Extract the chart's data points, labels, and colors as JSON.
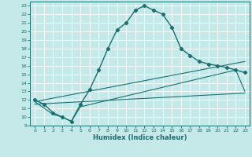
{
  "xlabel": "Humidex (Indice chaleur)",
  "xlim": [
    -0.5,
    23.5
  ],
  "ylim": [
    9,
    23.5
  ],
  "yticks": [
    9,
    10,
    11,
    12,
    13,
    14,
    15,
    16,
    17,
    18,
    19,
    20,
    21,
    22,
    23
  ],
  "xticks": [
    0,
    1,
    2,
    3,
    4,
    5,
    6,
    7,
    8,
    9,
    10,
    11,
    12,
    13,
    14,
    15,
    16,
    17,
    18,
    19,
    20,
    21,
    22,
    23
  ],
  "bg_color": "#c5e8e8",
  "line_color": "#1a7070",
  "grid_color": "#ffffff",
  "curve1_x": [
    0,
    1,
    2,
    3,
    4,
    5,
    6,
    7,
    8,
    9,
    10,
    11,
    12,
    13,
    14,
    15,
    16,
    17,
    18,
    19,
    20,
    21,
    22,
    23
  ],
  "curve1_y": [
    12.0,
    11.5,
    10.5,
    10.0,
    9.5,
    11.5,
    13.2,
    15.5,
    18.0,
    20.2,
    21.0,
    22.5,
    23.0,
    22.5,
    22.0,
    20.5,
    18.0,
    17.2,
    16.5,
    16.2,
    16.0,
    15.8,
    15.5,
    15.2
  ],
  "curve2_x": [
    0,
    2,
    3,
    4,
    5,
    22,
    23
  ],
  "curve2_y": [
    11.8,
    10.3,
    10.0,
    9.5,
    11.2,
    15.5,
    13.0
  ],
  "curve4_x": [
    0,
    23
  ],
  "curve4_y": [
    11.8,
    16.5
  ],
  "curve5_x": [
    0,
    23
  ],
  "curve5_y": [
    11.5,
    12.8
  ]
}
